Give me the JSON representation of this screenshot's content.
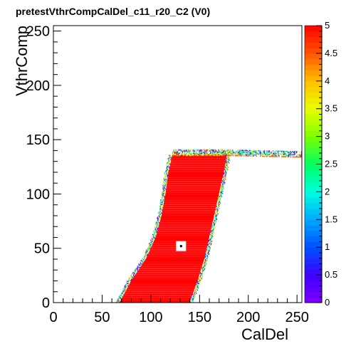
{
  "chart_data": {
    "type": "heatmap",
    "title": "pretestVthrCompCalDel_c11_r20_C2 (V0)",
    "xlabel": "CalDel",
    "ylabel": "VthrComp",
    "xlim": [
      0,
      255
    ],
    "ylim": [
      0,
      255
    ],
    "zlim": [
      0,
      5
    ],
    "x_ticks": [
      "0",
      "50",
      "100",
      "150",
      "200",
      "250"
    ],
    "y_ticks": [
      "0",
      "50",
      "100",
      "150",
      "200",
      "250"
    ],
    "z_ticks": [
      "0",
      "0.5",
      "1",
      "1.5",
      "2",
      "2.5",
      "3",
      "3.5",
      "4",
      "4.5",
      "5"
    ],
    "grid": false,
    "legend": "colorbar-right",
    "region": {
      "description_values": "pass region (z = 5) bounded per VthrComp row",
      "rows": [
        {
          "y": 0,
          "x_left": 68,
          "x_right": 140
        },
        {
          "y": 20,
          "x_left": 80,
          "x_right": 148
        },
        {
          "y": 40,
          "x_left": 95,
          "x_right": 155
        },
        {
          "y": 60,
          "x_left": 105,
          "x_right": 160
        },
        {
          "y": 80,
          "x_left": 111,
          "x_right": 165
        },
        {
          "y": 100,
          "x_left": 115,
          "x_right": 170
        },
        {
          "y": 120,
          "x_left": 118,
          "x_right": 175
        },
        {
          "y": 135,
          "x_left": 122,
          "x_right": 178
        }
      ],
      "plateau": {
        "y": 140,
        "x_from": 175,
        "x_to": 255
      }
    },
    "empty_bin": {
      "x": 131,
      "y": 52
    }
  }
}
